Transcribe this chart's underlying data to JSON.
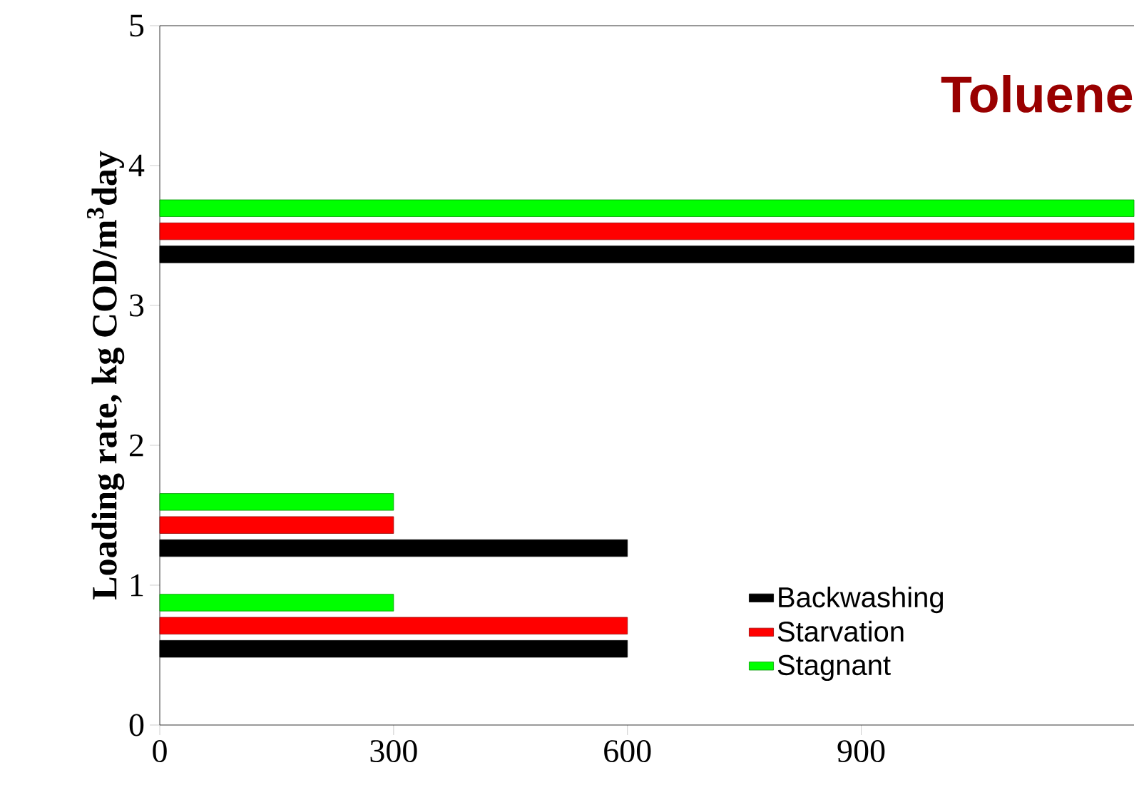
{
  "chart_data": {
    "type": "bar",
    "orientation": "horizontal",
    "title": "Toluene",
    "ylabel": "Loading rate, kg COD/m$^{3}$day",
    "x": [
      0.71,
      1.43,
      3.53
    ],
    "series": [
      {
        "name": "Backwashing",
        "color": "#000000",
        "values": [
          600,
          600,
          1250
        ]
      },
      {
        "name": "Starvation",
        "color": "#ff0000",
        "values": [
          600,
          300,
          1250
        ]
      },
      {
        "name": "Stagnant",
        "color": "#00ff00",
        "values": [
          300,
          300,
          1250
        ]
      }
    ],
    "xlim": [
      0,
      1250
    ],
    "xticks": [
      0,
      300,
      600,
      900
    ],
    "ylim": [
      0,
      5
    ],
    "yticks": [
      0,
      1,
      2,
      3,
      4,
      5
    ],
    "grid": false,
    "legend": "bottom right"
  }
}
